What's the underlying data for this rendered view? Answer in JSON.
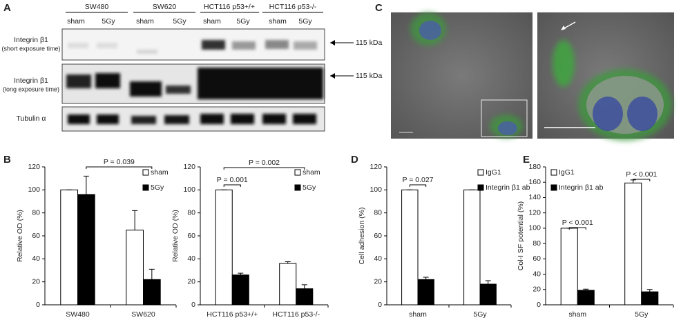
{
  "panel_labels": [
    "A",
    "B",
    "C",
    "D",
    "E"
  ],
  "blot": {
    "groups": [
      "SW480",
      "SW620",
      "HCT116 p53+/+",
      "HCT116 p53-/-"
    ],
    "lanes": [
      "sham",
      "5Gy",
      "sham",
      "5Gy",
      "sham",
      "5Gy",
      "sham",
      "5Gy"
    ],
    "rows": [
      {
        "label": "Integrin β1",
        "sublabel": "(short exposure time)"
      },
      {
        "label": "Integrin β1",
        "sublabel": "(long exposure time)"
      },
      {
        "label": "Tubulin α"
      }
    ],
    "markers": [
      "115 kDa",
      "115 kDa"
    ]
  },
  "chart_data": [
    {
      "type": "bar",
      "ylabel": "Relative OD (%)",
      "categories": [
        "SW480",
        "SW620"
      ],
      "series": [
        {
          "name": "sham",
          "color": "#ffffff",
          "values": [
            100,
            65
          ],
          "errors": [
            0,
            17
          ]
        },
        {
          "name": "5Gy",
          "color": "#000000",
          "values": [
            96,
            22
          ],
          "errors": [
            16,
            9
          ]
        }
      ],
      "ylim": [
        0,
        120
      ],
      "yticks": [
        0,
        20,
        40,
        60,
        80,
        100,
        120
      ],
      "legend": "upper right",
      "annotations": [
        "P = 0.039"
      ]
    },
    {
      "type": "bar",
      "ylabel": "Relative OD (%)",
      "categories": [
        "HCT116 p53+/+",
        "HCT116 p53-/-"
      ],
      "series": [
        {
          "name": "sham",
          "color": "#ffffff",
          "values": [
            100,
            36
          ],
          "errors": [
            0,
            1.5
          ]
        },
        {
          "name": "5Gy",
          "color": "#000000",
          "values": [
            26,
            14
          ],
          "errors": [
            1.5,
            3.5
          ]
        }
      ],
      "ylim": [
        0,
        120
      ],
      "yticks": [
        0,
        20,
        40,
        60,
        80,
        100,
        120
      ],
      "legend": "upper right",
      "annotations": [
        "P = 0.001",
        "P = 0.002"
      ]
    },
    {
      "type": "bar",
      "ylabel": "Cell adhesion (%)",
      "categories": [
        "sham",
        "5Gy"
      ],
      "series": [
        {
          "name": "IgG1",
          "color": "#ffffff",
          "values": [
            100,
            100
          ],
          "errors": [
            0,
            0
          ]
        },
        {
          "name": "Integrin β1 ab",
          "color": "#000000",
          "values": [
            22,
            18
          ],
          "errors": [
            2,
            3
          ]
        }
      ],
      "ylim": [
        0,
        120
      ],
      "yticks": [
        0,
        20,
        40,
        60,
        80,
        100,
        120
      ],
      "legend": "upper right",
      "annotations": [
        "P = 0.027"
      ]
    },
    {
      "type": "bar",
      "ylabel": "Col-I SF potential (%)",
      "categories": [
        "sham",
        "5Gy"
      ],
      "series": [
        {
          "name": "IgG1",
          "color": "#ffffff",
          "values": [
            100,
            159
          ],
          "errors": [
            0,
            4
          ]
        },
        {
          "name": "Integrin β1 ab",
          "color": "#000000",
          "values": [
            19,
            17
          ],
          "errors": [
            1.5,
            3
          ]
        }
      ],
      "ylim": [
        0,
        180
      ],
      "yticks": [
        0,
        20,
        40,
        60,
        80,
        100,
        120,
        140,
        160,
        180
      ],
      "legend": "upper left",
      "annotations": [
        "P < 0.001",
        "P < 0.001"
      ]
    }
  ]
}
